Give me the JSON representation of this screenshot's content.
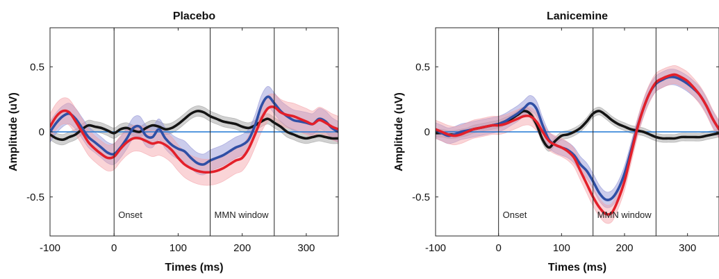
{
  "chart_data": [
    {
      "type": "line",
      "title": "Placebo",
      "xlabel": "Times (ms)",
      "ylabel": "Amplitude (uV)",
      "xlim": [
        -100,
        350
      ],
      "ylim": [
        -0.8,
        0.8
      ],
      "xticks": [
        -100,
        0,
        100,
        200,
        300
      ],
      "yticks": [
        -0.5,
        0,
        0.5
      ],
      "ytick_labels": [
        "-0.5",
        "0",
        "0.5"
      ],
      "grid": false,
      "annotations": [
        {
          "x": 0,
          "text": "Onset"
        },
        {
          "x": 150,
          "text": "MMN window"
        },
        {
          "x": 250,
          "text": ""
        }
      ],
      "baseline": {
        "y": 0,
        "color": "#1f77d4"
      },
      "series": [
        {
          "color": "#141414",
          "band_color": "#9a9a9a",
          "x": [
            -100,
            -90,
            -80,
            -70,
            -60,
            -50,
            -40,
            -30,
            -20,
            -10,
            0,
            10,
            20,
            30,
            40,
            50,
            60,
            70,
            80,
            90,
            100,
            110,
            120,
            130,
            140,
            150,
            160,
            170,
            180,
            190,
            200,
            210,
            220,
            230,
            240,
            250,
            260,
            270,
            280,
            290,
            300,
            310,
            320,
            330,
            340,
            350
          ],
          "y": [
            -0.02,
            -0.05,
            -0.06,
            -0.04,
            -0.02,
            0.02,
            0.05,
            0.04,
            0.03,
            0.01,
            -0.01,
            0.02,
            0.03,
            0.01,
            0.0,
            0.03,
            0.05,
            0.04,
            0.02,
            0.03,
            0.06,
            0.1,
            0.14,
            0.16,
            0.15,
            0.12,
            0.1,
            0.08,
            0.07,
            0.06,
            0.04,
            0.03,
            0.05,
            0.08,
            0.1,
            0.07,
            0.04,
            0.0,
            -0.02,
            -0.04,
            -0.05,
            -0.04,
            -0.03,
            -0.04,
            -0.05,
            -0.05
          ],
          "band": 0.04
        },
        {
          "color": "#2f4fa5",
          "band_color": "#8c8ed4",
          "x": [
            -100,
            -90,
            -80,
            -70,
            -60,
            -50,
            -40,
            -30,
            -20,
            -10,
            0,
            10,
            20,
            30,
            40,
            50,
            60,
            70,
            80,
            90,
            100,
            110,
            120,
            130,
            140,
            150,
            160,
            170,
            180,
            190,
            200,
            210,
            220,
            230,
            240,
            250,
            260,
            270,
            280,
            290,
            300,
            310,
            320,
            330,
            340,
            350
          ],
          "y": [
            0.0,
            0.07,
            0.12,
            0.14,
            0.1,
            0.03,
            -0.04,
            -0.08,
            -0.12,
            -0.16,
            -0.17,
            -0.12,
            -0.05,
            0.03,
            0.04,
            -0.03,
            -0.04,
            0.02,
            -0.05,
            -0.1,
            -0.13,
            -0.15,
            -0.2,
            -0.24,
            -0.25,
            -0.22,
            -0.2,
            -0.18,
            -0.15,
            -0.12,
            -0.1,
            -0.06,
            0.05,
            0.2,
            0.27,
            0.22,
            0.16,
            0.12,
            0.09,
            0.08,
            0.07,
            0.06,
            0.1,
            0.08,
            0.03,
            0.0
          ],
          "band": 0.08
        },
        {
          "color": "#e3202a",
          "band_color": "#f3a0a6",
          "x": [
            -100,
            -90,
            -80,
            -70,
            -60,
            -50,
            -40,
            -30,
            -20,
            -10,
            0,
            10,
            20,
            30,
            40,
            50,
            60,
            70,
            80,
            90,
            100,
            110,
            120,
            130,
            140,
            150,
            160,
            170,
            180,
            190,
            200,
            210,
            220,
            230,
            240,
            250,
            260,
            270,
            280,
            290,
            300,
            310,
            320,
            330,
            340,
            350
          ],
          "y": [
            0.04,
            0.12,
            0.16,
            0.15,
            0.08,
            0.0,
            -0.08,
            -0.13,
            -0.17,
            -0.2,
            -0.19,
            -0.13,
            -0.08,
            -0.05,
            -0.05,
            -0.07,
            -0.09,
            -0.08,
            -0.1,
            -0.14,
            -0.2,
            -0.25,
            -0.28,
            -0.3,
            -0.31,
            -0.31,
            -0.3,
            -0.28,
            -0.25,
            -0.22,
            -0.2,
            -0.13,
            -0.02,
            0.1,
            0.18,
            0.19,
            0.15,
            0.13,
            0.12,
            0.1,
            0.08,
            0.06,
            0.09,
            0.07,
            0.04,
            0.02
          ],
          "band": 0.1
        }
      ]
    },
    {
      "type": "line",
      "title": "Lanicemine",
      "xlabel": "Times (ms)",
      "ylabel": "Amplitude (uV)",
      "xlim": [
        -100,
        350
      ],
      "ylim": [
        -0.8,
        0.8
      ],
      "xticks": [
        -100,
        0,
        100,
        200,
        300
      ],
      "yticks": [
        -0.5,
        0,
        0.5
      ],
      "ytick_labels": [
        "-0.5",
        "0",
        "0.5"
      ],
      "grid": false,
      "annotations": [
        {
          "x": 0,
          "text": "Onset"
        },
        {
          "x": 150,
          "text": "MMN window"
        },
        {
          "x": 250,
          "text": ""
        }
      ],
      "baseline": {
        "y": 0,
        "color": "#1f77d4"
      },
      "series": [
        {
          "color": "#141414",
          "band_color": "#9a9a9a",
          "x": [
            -100,
            -90,
            -80,
            -70,
            -60,
            -50,
            -40,
            -30,
            -20,
            -10,
            0,
            10,
            20,
            30,
            40,
            50,
            60,
            70,
            80,
            90,
            100,
            110,
            120,
            130,
            140,
            150,
            160,
            170,
            180,
            190,
            200,
            210,
            220,
            230,
            240,
            250,
            260,
            270,
            280,
            290,
            300,
            310,
            320,
            330,
            340,
            350
          ],
          "y": [
            -0.01,
            -0.01,
            -0.02,
            -0.02,
            -0.01,
            0.0,
            0.02,
            0.03,
            0.04,
            0.05,
            0.06,
            0.08,
            0.1,
            0.13,
            0.16,
            0.14,
            0.06,
            -0.06,
            -0.12,
            -0.07,
            -0.03,
            -0.02,
            0.0,
            0.03,
            0.08,
            0.14,
            0.16,
            0.13,
            0.09,
            0.06,
            0.04,
            0.02,
            0.01,
            0.0,
            -0.02,
            -0.04,
            -0.05,
            -0.05,
            -0.05,
            -0.04,
            -0.04,
            -0.04,
            -0.04,
            -0.03,
            -0.02,
            -0.01
          ],
          "band": 0.03
        },
        {
          "color": "#2f4fa5",
          "band_color": "#8c8ed4",
          "x": [
            -100,
            -90,
            -80,
            -70,
            -60,
            -50,
            -40,
            -30,
            -20,
            -10,
            0,
            10,
            20,
            30,
            40,
            50,
            60,
            70,
            80,
            90,
            100,
            110,
            120,
            130,
            140,
            150,
            160,
            170,
            180,
            190,
            200,
            210,
            220,
            230,
            240,
            250,
            260,
            270,
            280,
            290,
            300,
            310,
            320,
            330,
            340,
            350
          ],
          "y": [
            0.01,
            -0.01,
            -0.03,
            -0.02,
            0.0,
            0.01,
            0.02,
            0.03,
            0.04,
            0.05,
            0.06,
            0.08,
            0.11,
            0.14,
            0.18,
            0.22,
            0.18,
            0.05,
            -0.06,
            -0.1,
            -0.12,
            -0.14,
            -0.18,
            -0.25,
            -0.3,
            -0.38,
            -0.47,
            -0.52,
            -0.51,
            -0.44,
            -0.32,
            -0.15,
            0.03,
            0.18,
            0.3,
            0.37,
            0.4,
            0.42,
            0.42,
            0.4,
            0.37,
            0.33,
            0.28,
            0.2,
            0.1,
            0.02
          ],
          "band": 0.06
        },
        {
          "color": "#e3202a",
          "band_color": "#f3a0a6",
          "x": [
            -100,
            -90,
            -80,
            -70,
            -60,
            -50,
            -40,
            -30,
            -20,
            -10,
            0,
            10,
            20,
            30,
            40,
            50,
            60,
            70,
            80,
            90,
            100,
            110,
            120,
            130,
            140,
            150,
            160,
            170,
            180,
            190,
            200,
            210,
            220,
            230,
            240,
            250,
            260,
            270,
            280,
            290,
            300,
            310,
            320,
            330,
            340,
            350
          ],
          "y": [
            0.02,
            0.0,
            -0.02,
            -0.03,
            -0.02,
            0.0,
            0.02,
            0.03,
            0.04,
            0.05,
            0.05,
            0.06,
            0.08,
            0.1,
            0.12,
            0.12,
            0.08,
            0.0,
            -0.07,
            -0.1,
            -0.12,
            -0.15,
            -0.2,
            -0.3,
            -0.4,
            -0.5,
            -0.58,
            -0.63,
            -0.62,
            -0.52,
            -0.38,
            -0.18,
            0.02,
            0.18,
            0.3,
            0.38,
            0.41,
            0.43,
            0.44,
            0.42,
            0.39,
            0.34,
            0.28,
            0.2,
            0.1,
            0.02
          ],
          "band": 0.07
        }
      ]
    }
  ]
}
